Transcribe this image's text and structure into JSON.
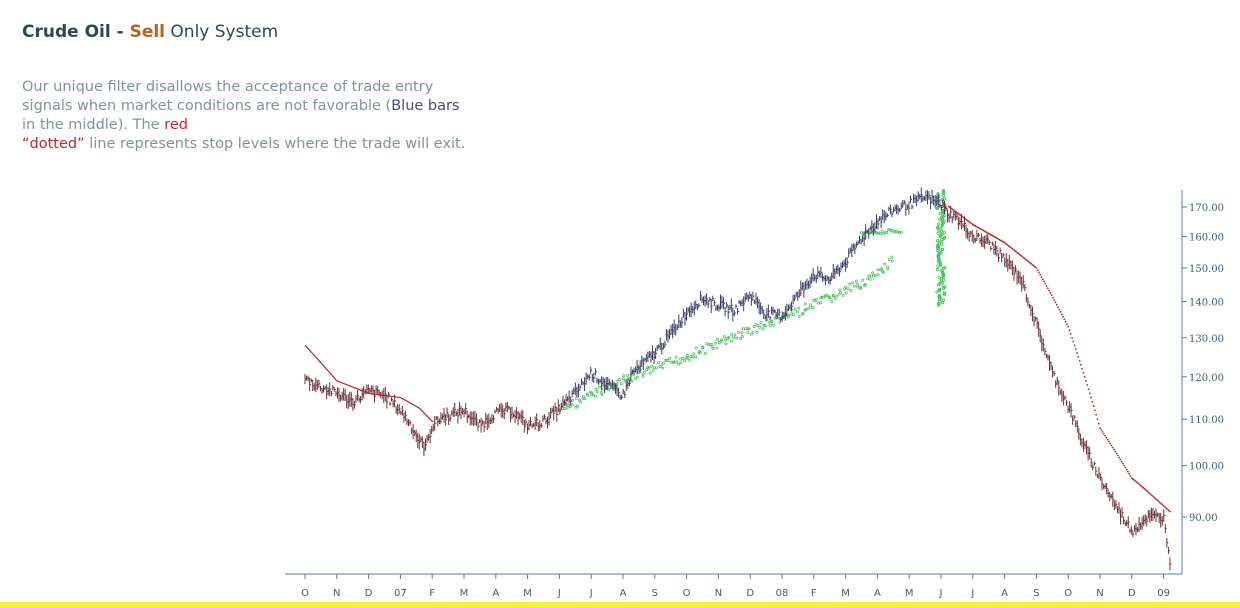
{
  "header": {
    "title_part1": "Crude Oil - ",
    "title_part2": "Sell",
    "title_part3": " Only System"
  },
  "description": {
    "part1": "Our unique filter disallows the acceptance of trade entry signals when market conditions are not favorable (",
    "blue_text": "Blue bars",
    "part2": " in the middle).  The ",
    "red_text": "red",
    "red_quoted": "“dotted”",
    "part3": " line represents stop levels where the trade will exit."
  },
  "colors": {
    "sell_bars": "#6b2f3a",
    "filtered_bars": "#3b3b66",
    "entry_signals": "#3cc24f",
    "stop_line": "#b3262c",
    "axis": "#5b7f94",
    "title_accent": "#b5651d",
    "bottom_band": "#f7f03b"
  },
  "chart_data": {
    "type": "line",
    "title": "Crude Oil - Sell Only System",
    "subtitle": "",
    "xlabel": "",
    "ylabel": "",
    "ylim": [
      82,
      178
    ],
    "y_ticks": [
      90,
      100,
      110,
      120,
      130,
      140,
      150,
      160,
      170
    ],
    "y_tick_labels": [
      "90.00",
      "100.00",
      "110.00",
      "120.00",
      "130.00",
      "140.00",
      "150.00",
      "160.00",
      "170.00"
    ],
    "x_tick_labels": [
      "O",
      "N",
      "D",
      "07",
      "F",
      "M",
      "A",
      "M",
      "J",
      "J",
      "A",
      "S",
      "O",
      "N",
      "D",
      "08",
      "F",
      "M",
      "A",
      "M",
      "J",
      "J",
      "A",
      "S",
      "O",
      "N",
      "D",
      "09"
    ],
    "grid": false,
    "legend": "none",
    "series": [
      {
        "role": "price",
        "x": [
          0,
          0.5,
          1,
          1.5,
          2,
          2.5,
          3,
          3.3,
          3.6,
          3.8,
          4,
          4.3,
          4.6,
          5,
          5.5,
          6,
          6.5,
          7,
          7.5,
          8,
          8.3,
          8.6,
          9,
          9.5,
          10,
          10.3,
          10.6,
          11,
          11.5,
          12,
          12.5,
          13,
          13.5,
          14,
          14.5,
          15,
          15.5,
          16,
          16.5,
          17,
          17.5,
          18,
          18.5,
          19,
          19.5,
          20,
          20.2,
          20.5,
          21,
          21.5,
          22,
          22.5,
          23,
          23.5,
          24,
          24.5,
          25,
          25.5,
          26,
          26.5,
          27,
          27.2
        ],
        "values": [
          119.5,
          117.5,
          116,
          114,
          116.5,
          115.5,
          112,
          109,
          105,
          104,
          108.5,
          110.5,
          111,
          112,
          108.5,
          111.5,
          112,
          108.5,
          109.5,
          112.5,
          114.5,
          117,
          121,
          118,
          115.5,
          121,
          123,
          126,
          131,
          137,
          141,
          139,
          137.5,
          142,
          136.5,
          136,
          142,
          148,
          146.5,
          152,
          159.5,
          165,
          169,
          171,
          173.5,
          171,
          168,
          166,
          160,
          158,
          152.5,
          147,
          133.5,
          121,
          113,
          104,
          97.5,
          92,
          87.5,
          90,
          90,
          82.5
        ]
      },
      {
        "role": "filtered_start",
        "x_start": 8.3,
        "x_end": 20
      },
      {
        "role": "stop_line",
        "x": [
          0,
          1,
          2,
          3,
          3.6,
          4,
          20.2,
          21,
          22,
          23,
          24,
          25,
          26,
          27.2
        ],
        "values": [
          128,
          119,
          116,
          115,
          112.5,
          109.5,
          170.5,
          164,
          158,
          150,
          133,
          108,
          97.5,
          91
        ]
      },
      {
        "role": "entry_signals_band",
        "x": [
          8,
          10,
          12,
          14,
          15.5,
          17,
          18,
          18.5
        ],
        "values": [
          112,
          119,
          125,
          132,
          137,
          143,
          148,
          152
        ]
      },
      {
        "role": "entry_signals_upper",
        "x": [
          17.5,
          18.8
        ],
        "values": [
          161,
          162
        ]
      },
      {
        "role": "entry_signals_vertical",
        "x": 20,
        "low": 139,
        "high": 176
      }
    ]
  }
}
